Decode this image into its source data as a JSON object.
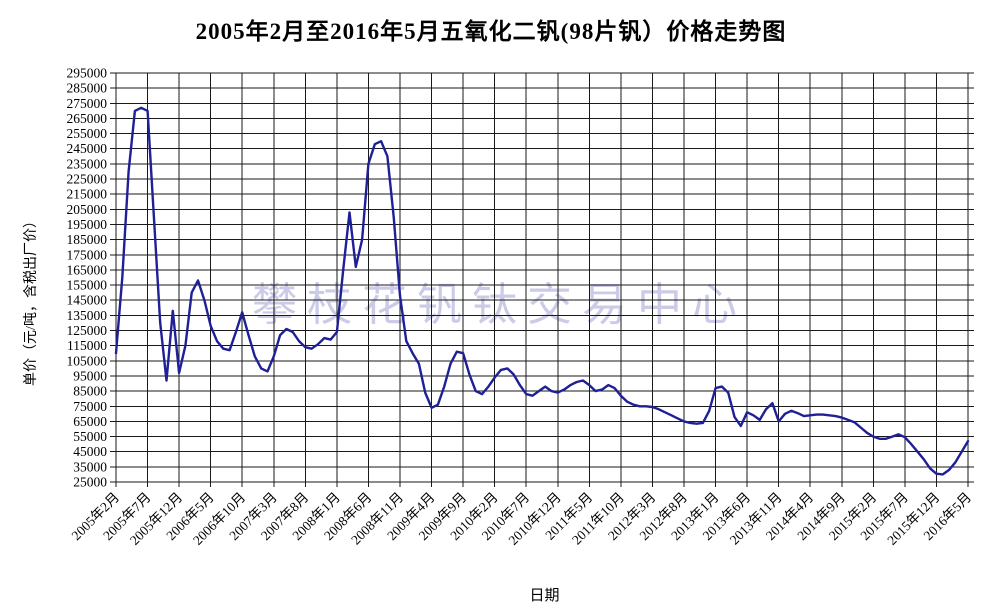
{
  "chart_data": {
    "type": "line",
    "title": "2005年2月至2016年5月五氧化二钒(98片钒）价格走势图",
    "xlabel": "日期",
    "ylabel": "单价（元/吨，含税出厂价）",
    "watermark": "攀枝花钒钛交易中心",
    "grid": true,
    "legend_position": "none",
    "ylim": [
      25000,
      295000
    ],
    "y_tick_step": 10000,
    "x_start_month": "2005年2月",
    "x_end_month": "2016年5月",
    "x_interval": "monthly",
    "x_tick_every_n_months": 5,
    "x_tick_labels": [
      "2005年2月",
      "2005年7月",
      "2005年12月",
      "2006年5月",
      "2006年10月",
      "2007年3月",
      "2007年8月",
      "2008年1月",
      "2008年6月",
      "2008年11月",
      "2009年4月",
      "2009年9月",
      "2010年2月",
      "2010年7月",
      "2010年12月",
      "2011年5月",
      "2011年10月",
      "2012年3月",
      "2012年8月",
      "2013年1月",
      "2013年6月",
      "2013年11月",
      "2014年4月",
      "2014年9月",
      "2015年2月",
      "2015年7月",
      "2015年12月",
      "2016年5月"
    ],
    "colors": {
      "line": "#1f1f96",
      "grid": "#1a1a1a",
      "watermark": "#c6c6e6",
      "text": "#000000"
    },
    "series": [
      {
        "values": [
          110000,
          160000,
          230000,
          270000,
          272000,
          270000,
          200000,
          130000,
          92000,
          138000,
          97000,
          115000,
          150000,
          158000,
          145000,
          128000,
          118000,
          113000,
          112000,
          124000,
          137000,
          122000,
          108000,
          100000,
          98000,
          108000,
          122000,
          126000,
          124000,
          118000,
          114000,
          113000,
          116000,
          120000,
          119000,
          124000,
          165000,
          203000,
          167000,
          185000,
          235000,
          248000,
          250000,
          240000,
          200000,
          148000,
          118000,
          110000,
          103000,
          84000,
          74000,
          76000,
          88000,
          103000,
          111000,
          110000,
          96000,
          85000,
          83000,
          88000,
          94000,
          99000,
          100000,
          96000,
          89000,
          83000,
          82000,
          85000,
          88000,
          85000,
          84000,
          86000,
          89000,
          91000,
          92000,
          89000,
          85000,
          86000,
          89000,
          87000,
          82000,
          78000,
          76000,
          75000,
          75000,
          74500,
          73000,
          71000,
          69000,
          67000,
          65000,
          64000,
          63500,
          64000,
          72000,
          87000,
          88000,
          84000,
          68000,
          62000,
          71000,
          69000,
          66000,
          73000,
          77000,
          65000,
          70000,
          72000,
          70500,
          68500,
          69000,
          69500,
          69500,
          69000,
          68500,
          67500,
          66000,
          64500,
          61000,
          57500,
          55000,
          53500,
          53500,
          55000,
          56500,
          54500,
          50000,
          45000,
          40000,
          34000,
          30500,
          30000,
          33000,
          38000,
          45000,
          52000
        ]
      }
    ]
  }
}
